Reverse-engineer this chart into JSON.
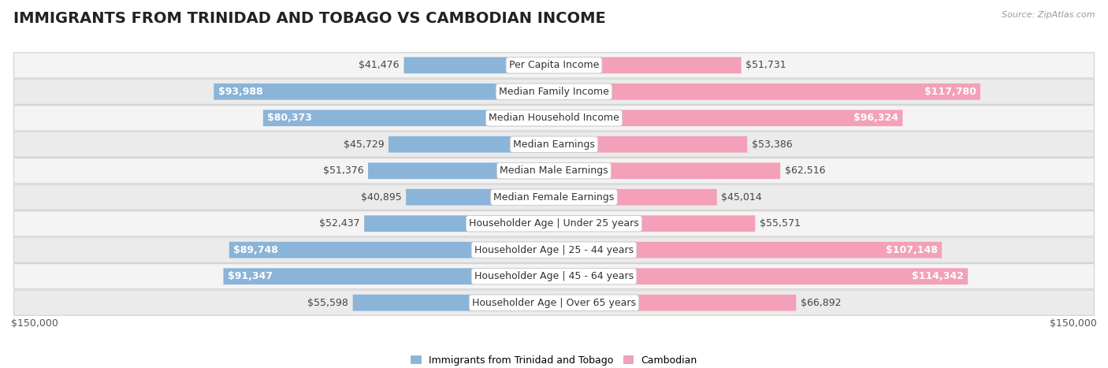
{
  "title": "IMMIGRANTS FROM TRINIDAD AND TOBAGO VS CAMBODIAN INCOME",
  "source": "Source: ZipAtlas.com",
  "categories": [
    "Per Capita Income",
    "Median Family Income",
    "Median Household Income",
    "Median Earnings",
    "Median Male Earnings",
    "Median Female Earnings",
    "Householder Age | Under 25 years",
    "Householder Age | 25 - 44 years",
    "Householder Age | 45 - 64 years",
    "Householder Age | Over 65 years"
  ],
  "left_values": [
    41476,
    93988,
    80373,
    45729,
    51376,
    40895,
    52437,
    89748,
    91347,
    55598
  ],
  "right_values": [
    51731,
    117780,
    96324,
    53386,
    62516,
    45014,
    55571,
    107148,
    114342,
    66892
  ],
  "left_labels": [
    "$41,476",
    "$93,988",
    "$80,373",
    "$45,729",
    "$51,376",
    "$40,895",
    "$52,437",
    "$89,748",
    "$91,347",
    "$55,598"
  ],
  "right_labels": [
    "$51,731",
    "$117,780",
    "$96,324",
    "$53,386",
    "$62,516",
    "$45,014",
    "$55,571",
    "$107,148",
    "$114,342",
    "$66,892"
  ],
  "left_label_inside": [
    false,
    true,
    true,
    false,
    false,
    false,
    false,
    true,
    true,
    false
  ],
  "right_label_inside": [
    false,
    true,
    true,
    false,
    false,
    false,
    false,
    true,
    true,
    false
  ],
  "max_value": 150000,
  "left_color": "#8ab4d8",
  "right_color": "#f4a0b8",
  "row_bg_light": "#f2f2f2",
  "row_bg_dark": "#e8e8e8",
  "legend_left": "Immigrants from Trinidad and Tobago",
  "legend_right": "Cambodian",
  "title_fontsize": 14,
  "label_fontsize": 9,
  "category_fontsize": 9,
  "source_fontsize": 8
}
